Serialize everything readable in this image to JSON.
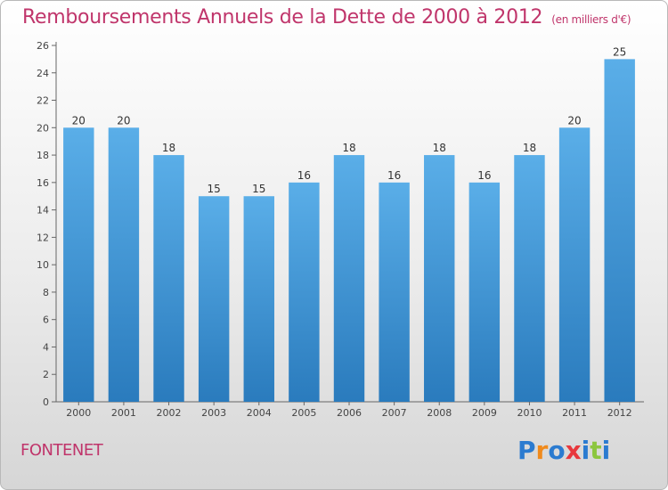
{
  "title": "Remboursements Annuels de la Dette de 2000 à 2012",
  "subtitle": "(en milliers d'€)",
  "town": "FONTENET",
  "logo": "Proxiti",
  "colors": {
    "bar_top": "#5aaee8",
    "bar_bottom": "#2a7bbd",
    "title": "#c0356b"
  },
  "chart_data": {
    "type": "bar",
    "title": "Remboursements Annuels de la Dette de 2000 à 2012",
    "xlabel": "",
    "ylabel": "",
    "categories": [
      "2000",
      "2001",
      "2002",
      "2003",
      "2004",
      "2005",
      "2006",
      "2007",
      "2008",
      "2009",
      "2010",
      "2011",
      "2012"
    ],
    "values": [
      20,
      20,
      18,
      15,
      15,
      16,
      18,
      16,
      18,
      16,
      18,
      20,
      25
    ],
    "ylim": [
      0,
      26
    ],
    "yticks": [
      0,
      2,
      4,
      6,
      8,
      10,
      12,
      14,
      16,
      18,
      20,
      22,
      24,
      26
    ],
    "grid": false
  }
}
